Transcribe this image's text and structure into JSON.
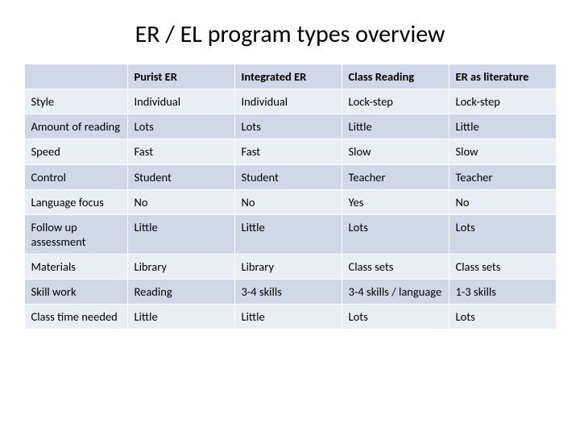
{
  "title": "ER / EL program types overview",
  "table": {
    "type": "table",
    "background_color": "#ffffff",
    "band_colors": [
      "#d0d8e8",
      "#e9edf4"
    ],
    "border_color": "#ffffff",
    "title_fontsize": 30,
    "cell_fontsize": 14.5,
    "columns": [
      "",
      "Purist ER",
      "Integrated ER",
      "Class Reading",
      "ER as literature"
    ],
    "rows": [
      {
        "label": "Style",
        "cells": [
          "Individual",
          "Individual",
          "Lock-step",
          "Lock-step"
        ]
      },
      {
        "label": "Amount of reading",
        "cells": [
          "Lots",
          "Lots",
          "Little",
          "Little"
        ]
      },
      {
        "label": "Speed",
        "cells": [
          "Fast",
          "Fast",
          "Slow",
          "Slow"
        ]
      },
      {
        "label": "Control",
        "cells": [
          "Student",
          "Student",
          "Teacher",
          "Teacher"
        ]
      },
      {
        "label": "Language focus",
        "cells": [
          "No",
          "No",
          "Yes",
          "No"
        ]
      },
      {
        "label": "Follow up assessment",
        "cells": [
          "Little",
          "Little",
          "Lots",
          "Lots"
        ]
      },
      {
        "label": "Materials",
        "cells": [
          "Library",
          "Library",
          "Class sets",
          "Class sets"
        ]
      },
      {
        "label": "Skill work",
        "cells": [
          "Reading",
          "3-4 skills",
          "3-4 skills / language",
          "1-3 skills"
        ]
      },
      {
        "label": "Class time needed",
        "cells": [
          "Little",
          "Little",
          "Lots",
          "Lots"
        ]
      }
    ]
  }
}
